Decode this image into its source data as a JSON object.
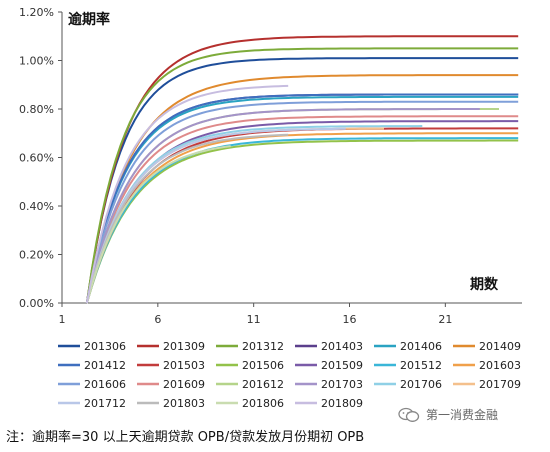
{
  "chart_data": {
    "type": "line",
    "title": "逾期率",
    "xlabel": "期数",
    "ylabel": "",
    "xlim": [
      1,
      25
    ],
    "ylim": [
      0,
      0.012
    ],
    "x_ticks": [
      1,
      6,
      11,
      16,
      21
    ],
    "y_ticks": [
      "0.00%",
      "0.20%",
      "0.40%",
      "0.60%",
      "0.80%",
      "1.00%",
      "1.20%"
    ],
    "y_tick_values": [
      0,
      0.002,
      0.004,
      0.006,
      0.008,
      0.01,
      0.012
    ],
    "grid": false,
    "legend_position": "bottom",
    "series": [
      {
        "name": "201306",
        "color": "#1f4e9a",
        "final": 0.0101,
        "start": 2.3,
        "end": 25,
        "k": 0.55
      },
      {
        "name": "201309",
        "color": "#b5302e",
        "final": 0.011,
        "start": 2.3,
        "end": 25,
        "k": 0.5
      },
      {
        "name": "201312",
        "color": "#7dab3a",
        "final": 0.0105,
        "start": 2.3,
        "end": 25,
        "k": 0.55
      },
      {
        "name": "201403",
        "color": "#5b3f8c",
        "final": 0.0086,
        "start": 2.3,
        "end": 25,
        "k": 0.5
      },
      {
        "name": "201406",
        "color": "#2aa3c2",
        "final": 0.0085,
        "start": 2.3,
        "end": 25,
        "k": 0.5
      },
      {
        "name": "201409",
        "color": "#e08a2e",
        "final": 0.0094,
        "start": 2.3,
        "end": 25,
        "k": 0.45
      },
      {
        "name": "201412",
        "color": "#3f6fbf",
        "final": 0.0086,
        "start": 2.3,
        "end": 25,
        "k": 0.5
      },
      {
        "name": "201503",
        "color": "#c23c3c",
        "final": 0.0072,
        "start": 2.3,
        "end": 25,
        "k": 0.42
      },
      {
        "name": "201506",
        "color": "#93c24a",
        "final": 0.0067,
        "start": 2.3,
        "end": 25,
        "k": 0.42
      },
      {
        "name": "201509",
        "color": "#7a5ba8",
        "final": 0.0075,
        "start": 2.3,
        "end": 25,
        "k": 0.42
      },
      {
        "name": "201512",
        "color": "#3ab6d8",
        "final": 0.0068,
        "start": 2.3,
        "end": 25,
        "k": 0.42
      },
      {
        "name": "201603",
        "color": "#f0a04a",
        "final": 0.007,
        "start": 2.3,
        "end": 25,
        "k": 0.42
      },
      {
        "name": "201606",
        "color": "#7f9fd9",
        "final": 0.0083,
        "start": 2.3,
        "end": 25,
        "k": 0.48
      },
      {
        "name": "201609",
        "color": "#df8a8a",
        "final": 0.0077,
        "start": 2.3,
        "end": 25,
        "k": 0.45
      },
      {
        "name": "201612",
        "color": "#b5d48a",
        "final": 0.008,
        "start": 2.3,
        "end": 24,
        "k": 0.45
      },
      {
        "name": "201703",
        "color": "#a493c9",
        "final": 0.008,
        "start": 2.3,
        "end": 23,
        "k": 0.45
      },
      {
        "name": "201706",
        "color": "#8fd0e6",
        "final": 0.0073,
        "start": 2.3,
        "end": 20,
        "k": 0.45
      },
      {
        "name": "201709",
        "color": "#f4c08c",
        "final": 0.0072,
        "start": 2.3,
        "end": 18,
        "k": 0.45
      },
      {
        "name": "201712",
        "color": "#b9c7e8",
        "final": 0.0072,
        "start": 2.3,
        "end": 16,
        "k": 0.45
      },
      {
        "name": "201803",
        "color": "#bbbbbb",
        "final": 0.007,
        "start": 2.3,
        "end": 13,
        "k": 0.45
      },
      {
        "name": "201806",
        "color": "#c9dcb0",
        "final": 0.0067,
        "start": 2.3,
        "end": 10,
        "k": 0.45
      },
      {
        "name": "201809",
        "color": "#c7bde0",
        "final": 0.009,
        "start": 2.3,
        "end": 13,
        "k": 0.5
      }
    ]
  },
  "note": "注：逾期率=30 以上天逾期贷款 OPB/贷款发放月份期初 OPB",
  "watermark": {
    "text": "第一消费金融",
    "icon": "wechat-icon"
  }
}
